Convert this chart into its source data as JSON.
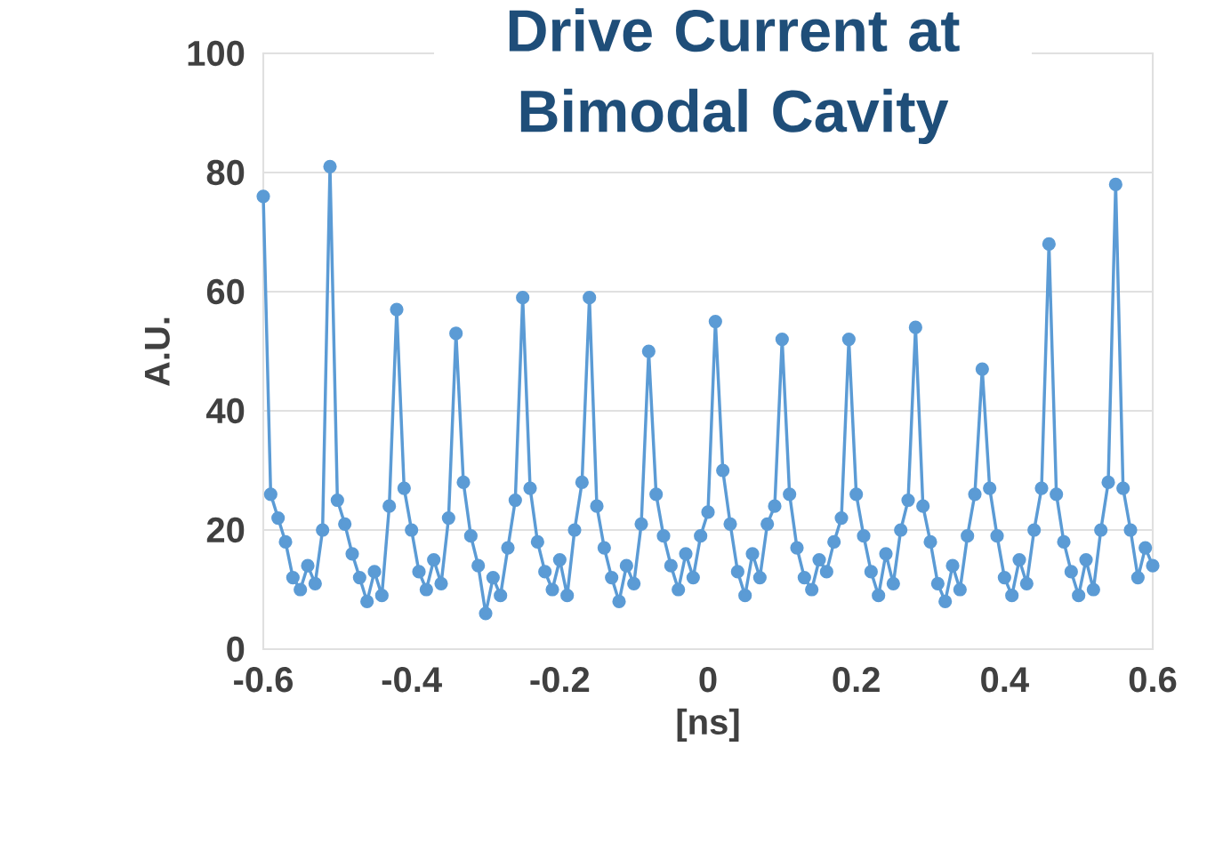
{
  "chart_data": {
    "type": "line",
    "title": "Drive Current at Bimodal Cavity",
    "xlabel": "[ns]",
    "ylabel": "A.U.",
    "xlim": [
      -0.6,
      0.6
    ],
    "ylim": [
      0,
      100
    ],
    "xticks": [
      -0.6,
      -0.4,
      -0.2,
      0,
      0.2,
      0.4,
      0.6
    ],
    "yticks": [
      0,
      20,
      40,
      60,
      80,
      100
    ],
    "grid": "y",
    "marker": "circle",
    "line_style": "solid",
    "series": [
      {
        "color": "#5b9bd5",
        "x": [
          -0.6,
          -0.59,
          -0.58,
          -0.57,
          -0.56,
          -0.55,
          -0.54,
          -0.53,
          -0.52,
          -0.51,
          -0.5,
          -0.49,
          -0.48,
          -0.47,
          -0.46,
          -0.45,
          -0.44,
          -0.43,
          -0.42,
          -0.41,
          -0.4,
          -0.39,
          -0.38,
          -0.37,
          -0.36,
          -0.35,
          -0.34,
          -0.33,
          -0.32,
          -0.31,
          -0.3,
          -0.29,
          -0.28,
          -0.27,
          -0.26,
          -0.25,
          -0.24,
          -0.23,
          -0.22,
          -0.21,
          -0.2,
          -0.19,
          -0.18,
          -0.17,
          -0.16,
          -0.15,
          -0.14,
          -0.13,
          -0.12,
          -0.11,
          -0.1,
          -0.09,
          -0.08,
          -0.07,
          -0.06,
          -0.05,
          -0.04,
          -0.03,
          -0.02,
          -0.01,
          0,
          0.01,
          0.02,
          0.03,
          0.04,
          0.05,
          0.06,
          0.07,
          0.08,
          0.09,
          0.1,
          0.11,
          0.12,
          0.13,
          0.14,
          0.15,
          0.16,
          0.17,
          0.18,
          0.19,
          0.2,
          0.21,
          0.22,
          0.23,
          0.24,
          0.25,
          0.26,
          0.27,
          0.28,
          0.29,
          0.3,
          0.31,
          0.32,
          0.33,
          0.34,
          0.35,
          0.36,
          0.37,
          0.38,
          0.39,
          0.4,
          0.41,
          0.42,
          0.43,
          0.44,
          0.45,
          0.46,
          0.47,
          0.48,
          0.49,
          0.5,
          0.51,
          0.52,
          0.53,
          0.54,
          0.55,
          0.56,
          0.57,
          0.58,
          0.59,
          0.6
        ],
        "values": [
          76,
          26,
          22,
          18,
          12,
          10,
          14,
          11,
          20,
          81,
          25,
          21,
          16,
          12,
          8,
          13,
          9,
          24,
          57,
          27,
          20,
          13,
          10,
          15,
          11,
          22,
          53,
          28,
          19,
          14,
          6,
          12,
          9,
          17,
          25,
          59,
          27,
          18,
          13,
          10,
          15,
          9,
          20,
          28,
          59,
          24,
          17,
          12,
          8,
          14,
          11,
          21,
          50,
          26,
          19,
          14,
          10,
          16,
          12,
          19,
          23,
          55,
          30,
          21,
          13,
          9,
          16,
          12,
          21,
          24,
          52,
          26,
          17,
          12,
          10,
          15,
          13,
          18,
          22,
          52,
          26,
          19,
          13,
          9,
          16,
          11,
          20,
          25,
          54,
          24,
          18,
          11,
          8,
          14,
          10,
          19,
          26,
          47,
          27,
          19,
          12,
          9,
          15,
          11,
          20,
          27,
          68,
          26,
          18,
          13,
          9,
          15,
          10,
          20,
          28,
          78,
          27,
          20,
          12,
          17,
          14
        ]
      }
    ]
  }
}
